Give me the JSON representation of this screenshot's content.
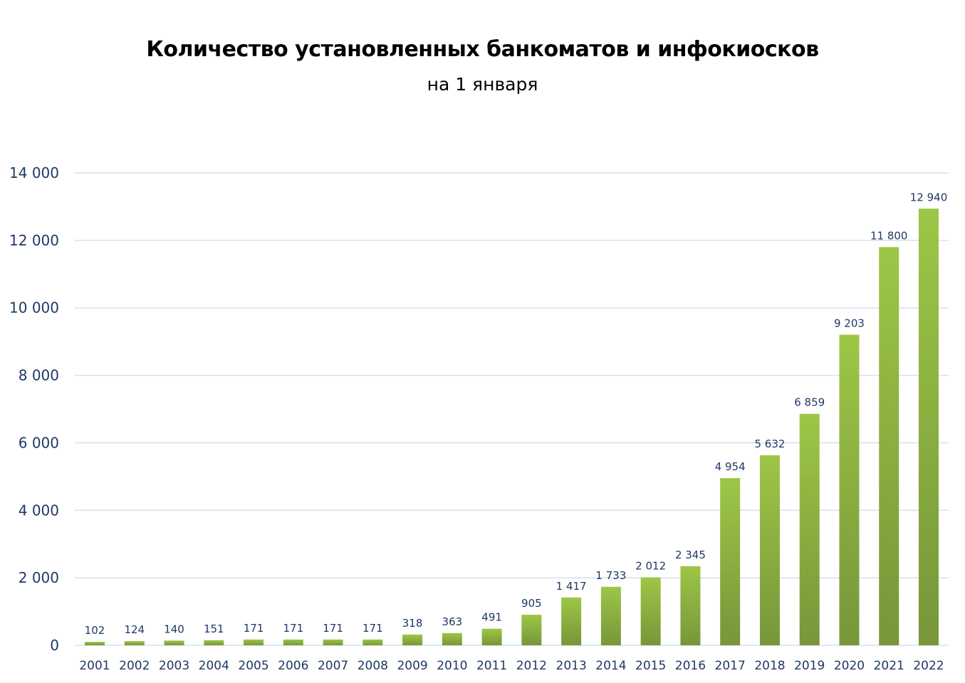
{
  "chart_data": {
    "type": "bar",
    "title": "Количество установленных банкоматов и инфокиосков",
    "subtitle": "на 1 января",
    "xlabel": "",
    "ylabel": "",
    "categories": [
      "2001",
      "2002",
      "2003",
      "2004",
      "2005",
      "2006",
      "2007",
      "2008",
      "2009",
      "2010",
      "2011",
      "2012",
      "2013",
      "2014",
      "2015",
      "2016",
      "2017",
      "2018",
      "2019",
      "2020",
      "2021",
      "2022"
    ],
    "values": [
      102,
      124,
      140,
      151,
      171,
      171,
      171,
      171,
      318,
      363,
      491,
      905,
      1417,
      1733,
      2012,
      2345,
      4954,
      5632,
      6859,
      9203,
      11800,
      12940
    ],
    "data_labels": [
      "102",
      "124",
      "140",
      "151",
      "171",
      "171",
      "171",
      "171",
      "318",
      "363",
      "491",
      "905",
      "1 417",
      "1 733",
      "2 012",
      "2 345",
      "4 954",
      "5 632",
      "6 859",
      "9 203",
      "11 800",
      "12 940"
    ],
    "ylim": [
      0,
      14000
    ],
    "yticks": [
      0,
      2000,
      4000,
      6000,
      8000,
      10000,
      12000,
      14000
    ],
    "ytick_labels": [
      "0",
      "2 000",
      "4 000",
      "6 000",
      "8 000",
      "10 000",
      "12 000",
      "14 000"
    ],
    "grid": true,
    "legend": "none",
    "colors": {
      "bar_top": "#9dc646",
      "bar_bottom": "#77963a",
      "text": "#1f3864",
      "grid": "#d6e0ec"
    }
  }
}
